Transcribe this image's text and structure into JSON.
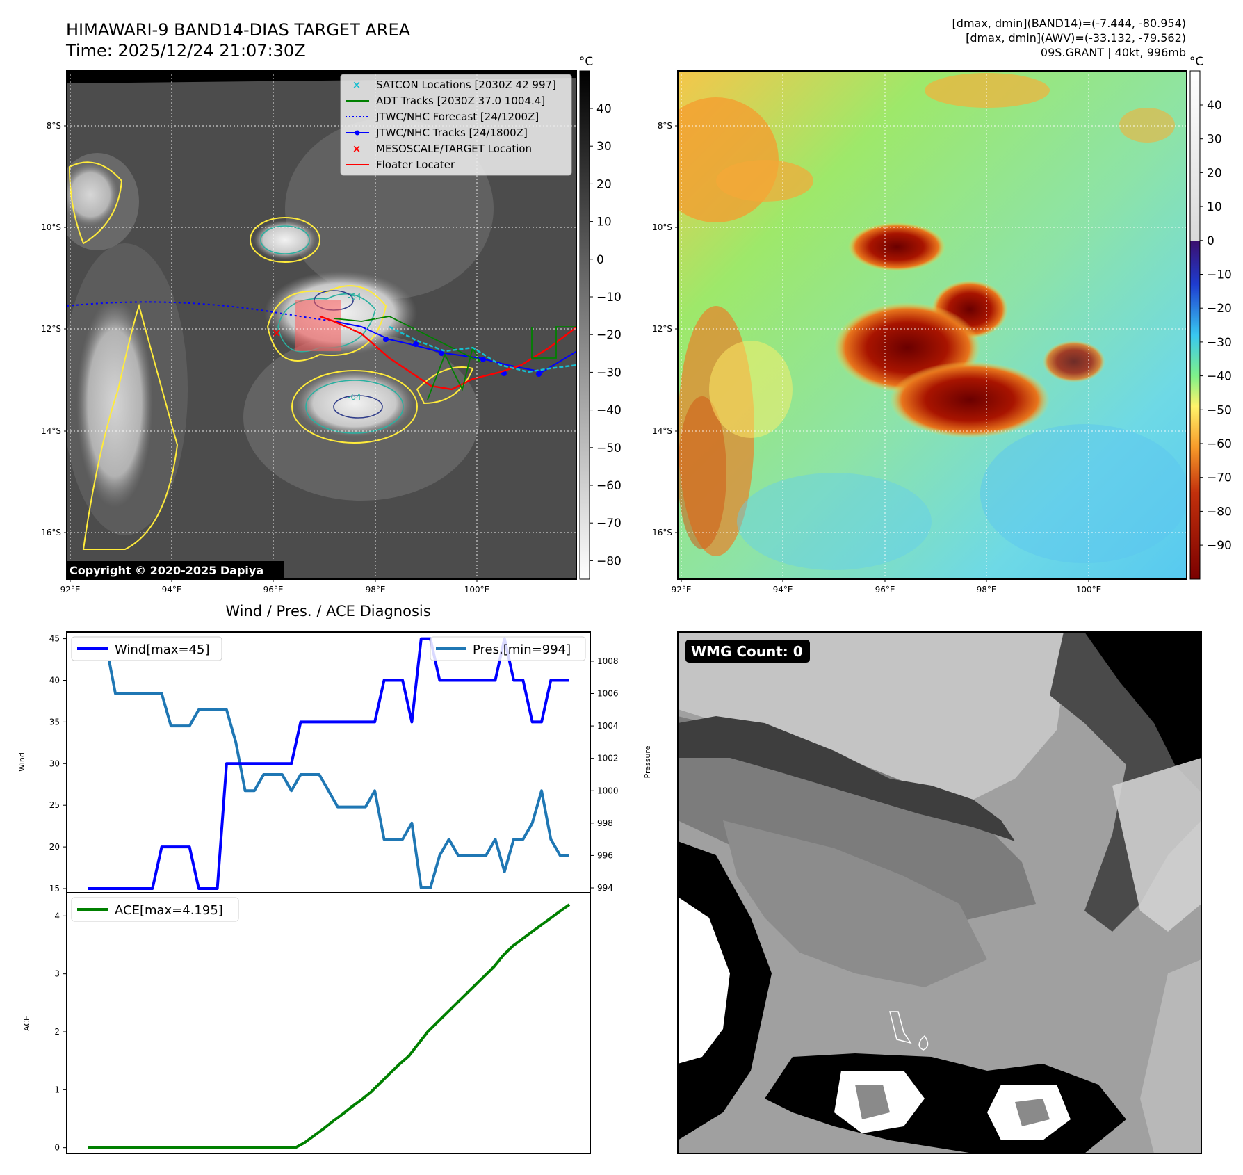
{
  "header": {
    "title_line1": "HIMAWARI-9 BAND14-DIAS TARGET AREA",
    "title_line2": "Time: 2025/12/24 21:07:30Z",
    "stats_line1": "[dmax, dmin](BAND14)=(-7.444, -80.954)",
    "stats_line2": "[dmax, dmin](AWV)=(-33.132, -79.562)",
    "stats_line3": "09S.GRANT | 40kt, 996mb"
  },
  "map": {
    "lat_labels": [
      "8°S",
      "10°S",
      "12°S",
      "14°S",
      "16°S"
    ],
    "lon_labels": [
      "92°E",
      "94°E",
      "96°E",
      "98°E",
      "100°E"
    ],
    "copyright": "Copyright © 2020-2025 Dapiya",
    "contour_labels": [
      "-64",
      "-64"
    ],
    "legend": [
      {
        "label": "SATCON Locations [2030Z 42 997]",
        "color": "#17becf",
        "symbol": "x"
      },
      {
        "label": "ADT Tracks [2030Z 37.0 1004.4]",
        "color": "#008000",
        "symbol": "line"
      },
      {
        "label": "JTWC/NHC Forecast [24/1200Z]",
        "color": "#0000ff",
        "symbol": "dotted"
      },
      {
        "label": "JTWC/NHC Tracks [24/1800Z]",
        "color": "#0000ff",
        "symbol": "line-dot"
      },
      {
        "label": "MESOSCALE/TARGET Location",
        "color": "#ff0000",
        "symbol": "x"
      },
      {
        "label": "Floater Locater",
        "color": "#ff0000",
        "symbol": "line"
      }
    ]
  },
  "colorbar_gray": {
    "unit": "°C",
    "ticks": [
      "40",
      "30",
      "20",
      "10",
      "0",
      "−10",
      "−20",
      "−30",
      "−40",
      "−50",
      "−60",
      "−70",
      "−80"
    ]
  },
  "colorbar_color": {
    "unit": "°C",
    "ticks": [
      "40",
      "30",
      "20",
      "10",
      "0",
      "−10",
      "−20",
      "−30",
      "−40",
      "−50",
      "−60",
      "−70",
      "−80",
      "−90"
    ]
  },
  "wmg": {
    "label": "WMG Count: 0"
  },
  "chart_data": [
    {
      "type": "line",
      "title": "Wind / Pres. / ACE Diagnosis",
      "ylabel": "Wind",
      "y2label": "Pressure",
      "ylim": [
        14.5,
        45.8
      ],
      "y2lim": [
        993.7,
        1009.8
      ],
      "yticks": [
        "15",
        "20",
        "25",
        "30",
        "35",
        "40",
        "45"
      ],
      "y2ticks": [
        "994",
        "996",
        "998",
        "1000",
        "1002",
        "1004",
        "1006",
        "1008"
      ],
      "series": [
        {
          "name": "Wind[max=45]",
          "color": "#0000ff",
          "values": [
            15,
            15,
            15,
            15,
            15,
            15,
            15,
            15,
            20,
            20,
            20,
            20,
            15,
            15,
            15,
            30,
            30,
            30,
            30,
            30,
            30,
            30,
            30,
            35,
            35,
            35,
            35,
            35,
            35,
            35,
            35,
            35,
            40,
            40,
            40,
            35,
            45,
            45,
            40,
            40,
            40,
            40,
            40,
            40,
            40,
            45,
            40,
            40,
            35,
            35,
            40,
            40,
            40
          ]
        },
        {
          "name": "Pres.[min=994]",
          "color": "#1f77b4",
          "values": [
            1009,
            1009,
            1009,
            1006,
            1006,
            1006,
            1006,
            1006,
            1006,
            1004,
            1004,
            1004,
            1005,
            1005,
            1005,
            1005,
            1003,
            1000,
            1000,
            1001,
            1001,
            1001,
            1000,
            1001,
            1001,
            1001,
            1000,
            999,
            999,
            999,
            999,
            1000,
            997,
            997,
            997,
            998,
            994,
            994,
            996,
            997,
            996,
            996,
            996,
            996,
            997,
            995,
            997,
            997,
            998,
            1000,
            997,
            996,
            996
          ]
        }
      ]
    },
    {
      "type": "line",
      "ylabel": "ACE",
      "ylim": [
        -0.1,
        4.4
      ],
      "yticks": [
        "0",
        "1",
        "2",
        "3",
        "4"
      ],
      "series": [
        {
          "name": "ACE[max=4.195]",
          "color": "#008000",
          "values": [
            0,
            0,
            0,
            0,
            0,
            0,
            0,
            0,
            0,
            0,
            0,
            0,
            0,
            0,
            0,
            0,
            0,
            0,
            0,
            0,
            0,
            0,
            0,
            0.09,
            0.21,
            0.33,
            0.46,
            0.58,
            0.71,
            0.83,
            0.96,
            1.12,
            1.28,
            1.44,
            1.58,
            1.79,
            2.0,
            2.16,
            2.32,
            2.48,
            2.64,
            2.8,
            2.96,
            3.12,
            3.32,
            3.48,
            3.6,
            3.72,
            3.84,
            3.96,
            4.08,
            4.195
          ]
        }
      ]
    }
  ]
}
